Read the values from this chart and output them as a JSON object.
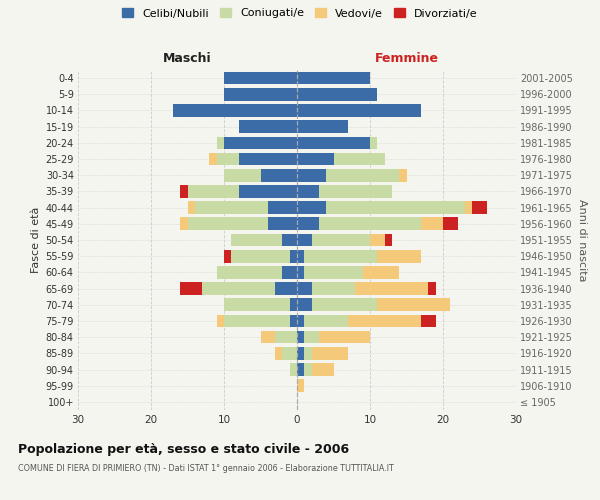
{
  "age_groups": [
    "100+",
    "95-99",
    "90-94",
    "85-89",
    "80-84",
    "75-79",
    "70-74",
    "65-69",
    "60-64",
    "55-59",
    "50-54",
    "45-49",
    "40-44",
    "35-39",
    "30-34",
    "25-29",
    "20-24",
    "15-19",
    "10-14",
    "5-9",
    "0-4"
  ],
  "birth_years": [
    "≤ 1905",
    "1906-1910",
    "1911-1915",
    "1916-1920",
    "1921-1925",
    "1926-1930",
    "1931-1935",
    "1936-1940",
    "1941-1945",
    "1946-1950",
    "1951-1955",
    "1956-1960",
    "1961-1965",
    "1966-1970",
    "1971-1975",
    "1976-1980",
    "1981-1985",
    "1986-1990",
    "1991-1995",
    "1996-2000",
    "2001-2005"
  ],
  "maschi": {
    "celibi": [
      0,
      0,
      0,
      0,
      0,
      1,
      1,
      3,
      2,
      1,
      2,
      4,
      4,
      8,
      5,
      8,
      10,
      8,
      17,
      10,
      10
    ],
    "coniugati": [
      0,
      0,
      1,
      2,
      3,
      9,
      9,
      10,
      9,
      8,
      7,
      11,
      10,
      7,
      5,
      3,
      1,
      0,
      0,
      0,
      0
    ],
    "vedovi": [
      0,
      0,
      0,
      1,
      2,
      1,
      0,
      0,
      0,
      0,
      0,
      1,
      1,
      0,
      0,
      1,
      0,
      0,
      0,
      0,
      0
    ],
    "divorziati": [
      0,
      0,
      0,
      0,
      0,
      0,
      0,
      3,
      0,
      1,
      0,
      0,
      0,
      1,
      0,
      0,
      0,
      0,
      0,
      0,
      0
    ]
  },
  "femmine": {
    "nubili": [
      0,
      0,
      1,
      1,
      1,
      1,
      2,
      2,
      1,
      1,
      2,
      3,
      4,
      3,
      4,
      5,
      10,
      7,
      17,
      11,
      10
    ],
    "coniugate": [
      0,
      0,
      1,
      1,
      2,
      6,
      9,
      6,
      8,
      10,
      8,
      14,
      19,
      10,
      10,
      7,
      1,
      0,
      0,
      0,
      0
    ],
    "vedove": [
      0,
      1,
      3,
      5,
      7,
      10,
      10,
      10,
      5,
      6,
      2,
      3,
      1,
      0,
      1,
      0,
      0,
      0,
      0,
      0,
      0
    ],
    "divorziate": [
      0,
      0,
      0,
      0,
      0,
      2,
      0,
      1,
      0,
      0,
      1,
      2,
      2,
      0,
      0,
      0,
      0,
      0,
      0,
      0,
      0
    ]
  },
  "colors": {
    "celibi_nubili": "#3b6ca8",
    "coniugati": "#c8dba4",
    "vedovi": "#f5c97a",
    "divorziati": "#cc2222"
  },
  "xlim": 30,
  "title": "Popolazione per età, sesso e stato civile - 2006",
  "subtitle": "COMUNE DI FIERA DI PRIMIERO (TN) - Dati ISTAT 1° gennaio 2006 - Elaborazione TUTTITALIA.IT",
  "ylabel_left": "Fasce di età",
  "ylabel_right": "Anni di nascita",
  "xlabel_left": "Maschi",
  "xlabel_right": "Femmine",
  "background_color": "#f5f5f0",
  "legend_labels": [
    "Celibi/Nubili",
    "Coniugati/e",
    "Vedovi/e",
    "Divorziati/e"
  ]
}
